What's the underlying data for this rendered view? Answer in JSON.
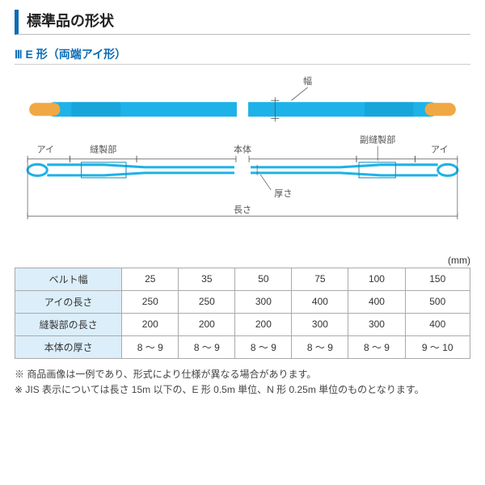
{
  "title": "標準品の形状",
  "subtitle": "Ⅲ E 形（両端アイ形）",
  "label_width": "幅",
  "label_eye_left": "アイ",
  "label_eye_right": "アイ",
  "label_sewn": "縫製部",
  "label_subsewn": "副縫製部",
  "label_body": "本体",
  "label_thickness": "厚さ",
  "label_length": "長さ",
  "unit": "(mm)",
  "table": {
    "rowHeaders": [
      "ベルト幅",
      "アイの長さ",
      "縫製部の長さ",
      "本体の厚さ"
    ],
    "cols": [
      [
        "25",
        "250",
        "200",
        "8 ～ 9"
      ],
      [
        "35",
        "250",
        "200",
        "8 ～ 9"
      ],
      [
        "50",
        "300",
        "200",
        "8 ～ 9"
      ],
      [
        "75",
        "400",
        "300",
        "8 ～ 9"
      ],
      [
        "100",
        "400",
        "300",
        "8 ～ 9"
      ],
      [
        "150",
        "500",
        "400",
        "9 ～ 10"
      ]
    ]
  },
  "notes": [
    "※ 商品画像は一例であり、形式により仕様が異なる場合があります。",
    "※ JIS 表示については長さ 15m 以下の、E 形 0.5m 単位、N 形 0.25m 単位のものとなります。"
  ],
  "colors": {
    "belt": "#1db2e8",
    "belt_dark": "#0e8fc0",
    "eye_cap": "#f0a845",
    "line": "#555555",
    "label": "#555555"
  }
}
